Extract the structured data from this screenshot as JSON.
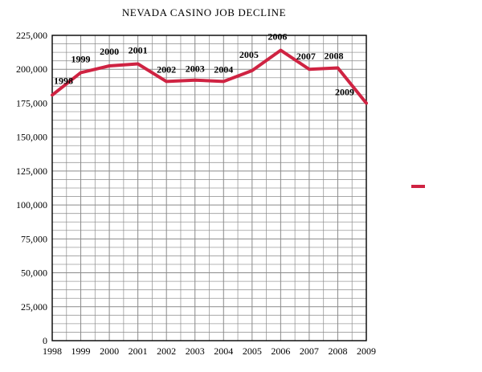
{
  "chart_data": {
    "type": "line",
    "title": "NEVADA CASINO JOB DECLINE",
    "x": [
      "1998",
      "1999",
      "2000",
      "2001",
      "2002",
      "2003",
      "2004",
      "2005",
      "2006",
      "2007",
      "2008",
      "2009"
    ],
    "values": [
      181000,
      197500,
      202500,
      204000,
      191000,
      192000,
      191000,
      199000,
      214000,
      200000,
      201000,
      175000
    ],
    "point_labels": [
      "1998",
      "1999",
      "2000",
      "2001",
      "2002",
      "2003",
      "2004",
      "2005",
      "2006",
      "2007",
      "2008",
      "2009"
    ],
    "xlabel": "",
    "ylabel": "",
    "ylim": [
      0,
      225000
    ],
    "y_major_tick": 25000,
    "y_minor_tick": 6250,
    "x_minor_divisions": 2,
    "grid": true,
    "legend_position": "right",
    "legend_labels": [],
    "line_color": "#cf2342",
    "grid_color": "#8a8a8a",
    "axis_color": "#000000"
  }
}
